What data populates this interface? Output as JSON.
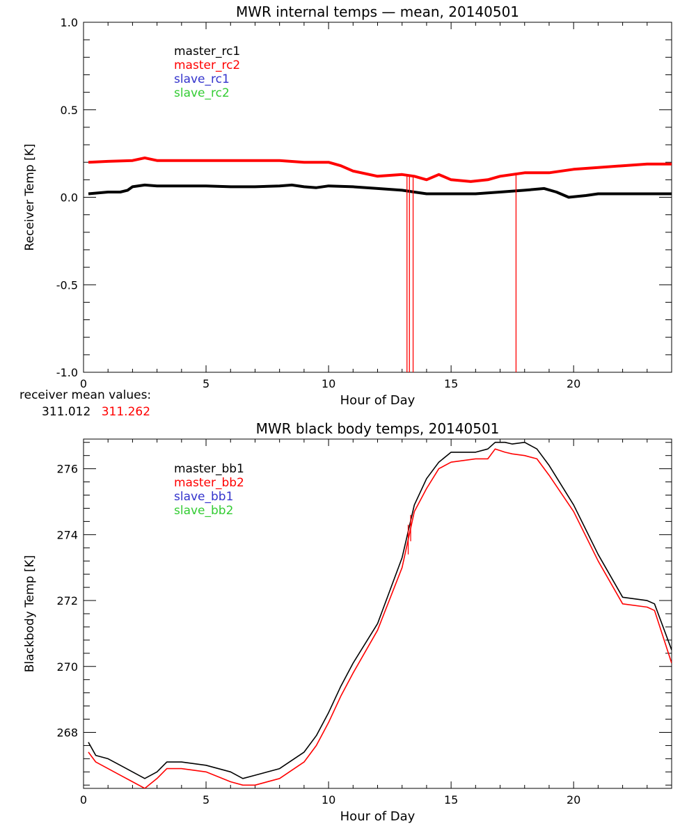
{
  "chart_data": [
    {
      "type": "line",
      "title": "MWR internal temps — mean, 20140501",
      "xlabel": "Hour of Day",
      "ylabel": "Receiver Temp [K]",
      "xlim": [
        0,
        24
      ],
      "ylim": [
        -1.0,
        1.0
      ],
      "xticks": [
        0,
        5,
        10,
        15,
        20
      ],
      "yticks": [
        -1.0,
        -0.5,
        0.0,
        0.5,
        1.0
      ],
      "ytick_labels": [
        "-1.0",
        "-0.5",
        "0.0",
        "0.5",
        "1.0"
      ],
      "grid": false,
      "legend_position": "top-left",
      "legend": [
        {
          "name": "master_rc1",
          "color": "#000000"
        },
        {
          "name": "master_rc2",
          "color": "#ff0000"
        },
        {
          "name": "slave_rc1",
          "color": "#3333cc"
        },
        {
          "name": "slave_rc2",
          "color": "#33cc33"
        }
      ],
      "series": [
        {
          "name": "master_rc1",
          "color": "#000000",
          "x": [
            0.2,
            1,
            1.5,
            1.8,
            2,
            2.5,
            3,
            4,
            5,
            6,
            7,
            8,
            8.5,
            9,
            9.5,
            10,
            11,
            12,
            13,
            13.5,
            14,
            15,
            16,
            17,
            18,
            18.8,
            19.3,
            19.8,
            20.5,
            21,
            22,
            23,
            24
          ],
          "y": [
            0.02,
            0.03,
            0.03,
            0.04,
            0.06,
            0.07,
            0.065,
            0.065,
            0.065,
            0.06,
            0.06,
            0.065,
            0.07,
            0.06,
            0.055,
            0.065,
            0.06,
            0.05,
            0.04,
            0.03,
            0.02,
            0.02,
            0.02,
            0.03,
            0.04,
            0.05,
            0.03,
            0.0,
            0.01,
            0.02,
            0.02,
            0.02,
            0.02
          ]
        },
        {
          "name": "master_rc2",
          "color": "#ff0000",
          "x": [
            0.2,
            1,
            2,
            2.5,
            3,
            4,
            5,
            6,
            7,
            8,
            9,
            10,
            10.5,
            11,
            12,
            13,
            13.5,
            14,
            14.5,
            15,
            15.8,
            16.5,
            17,
            18,
            19,
            20,
            21,
            22,
            23,
            24
          ],
          "y": [
            0.2,
            0.205,
            0.21,
            0.225,
            0.21,
            0.21,
            0.21,
            0.21,
            0.21,
            0.21,
            0.2,
            0.2,
            0.18,
            0.15,
            0.12,
            0.13,
            0.12,
            0.1,
            0.13,
            0.1,
            0.09,
            0.1,
            0.12,
            0.14,
            0.14,
            0.16,
            0.17,
            0.18,
            0.19,
            0.19
          ]
        }
      ],
      "spikes": [
        {
          "series": "master_rc2",
          "x": 13.2,
          "y_from": 0.12,
          "y_to": -1.0
        },
        {
          "series": "master_rc2",
          "x": 13.3,
          "y_from": 0.12,
          "y_to": -1.0
        },
        {
          "series": "master_rc2",
          "x": 13.45,
          "y_from": 0.12,
          "y_to": -1.0
        },
        {
          "series": "master_rc2",
          "x": 17.65,
          "y_from": 0.14,
          "y_to": -1.0
        }
      ]
    },
    {
      "type": "line",
      "title": "MWR black body temps, 20140501",
      "xlabel": "Hour of Day",
      "ylabel": "Blackbody Temp [K]",
      "xlim": [
        0,
        24
      ],
      "ylim": [
        266.3,
        276.9
      ],
      "xticks": [
        0,
        5,
        10,
        15,
        20
      ],
      "yticks": [
        268,
        270,
        272,
        274,
        276
      ],
      "ytick_labels": [
        "268",
        "270",
        "272",
        "274",
        "276"
      ],
      "grid": false,
      "legend_position": "top-left",
      "legend": [
        {
          "name": "master_bb1",
          "color": "#000000"
        },
        {
          "name": "master_bb2",
          "color": "#ff0000"
        },
        {
          "name": "slave_bb1",
          "color": "#3333cc"
        },
        {
          "name": "slave_bb2",
          "color": "#33cc33"
        }
      ],
      "series": [
        {
          "name": "master_bb1",
          "color": "#000000",
          "x": [
            0.2,
            0.5,
            1,
            1.5,
            2,
            2.5,
            3,
            3.4,
            4,
            5,
            6,
            6.5,
            7,
            8,
            9,
            9.5,
            10,
            10.5,
            11,
            12,
            13,
            13.5,
            14,
            14.5,
            15,
            16,
            16.5,
            16.8,
            17.2,
            17.5,
            18,
            18.5,
            19,
            20,
            21,
            22,
            23,
            23.3,
            24
          ],
          "y": [
            267.7,
            267.3,
            267.2,
            267.0,
            266.8,
            266.6,
            266.8,
            267.1,
            267.1,
            267.0,
            266.8,
            266.6,
            266.7,
            266.9,
            267.4,
            267.9,
            268.6,
            269.4,
            270.1,
            271.3,
            273.3,
            274.9,
            275.7,
            276.2,
            276.5,
            276.5,
            276.6,
            276.8,
            276.8,
            276.75,
            276.8,
            276.6,
            276.1,
            274.9,
            273.4,
            272.1,
            272.0,
            271.9,
            270.5
          ]
        },
        {
          "name": "master_bb2",
          "color": "#ff0000",
          "x": [
            0.2,
            0.5,
            1,
            1.5,
            2,
            2.5,
            3,
            3.4,
            4,
            5,
            6,
            6.5,
            7,
            8,
            9,
            9.5,
            10,
            10.5,
            11,
            12,
            13,
            13.5,
            14,
            14.5,
            15,
            16,
            16.5,
            16.8,
            17.2,
            17.5,
            18,
            18.5,
            19,
            20,
            21,
            22,
            23,
            23.3,
            24
          ],
          "y": [
            267.4,
            267.1,
            266.9,
            266.7,
            266.5,
            266.3,
            266.6,
            266.9,
            266.9,
            266.8,
            266.5,
            266.4,
            266.4,
            266.6,
            267.1,
            267.6,
            268.3,
            269.1,
            269.8,
            271.1,
            273.0,
            274.7,
            275.4,
            276.0,
            276.2,
            276.3,
            276.3,
            276.6,
            276.5,
            276.45,
            276.4,
            276.3,
            275.8,
            274.7,
            273.2,
            271.9,
            271.8,
            271.7,
            270.1
          ]
        }
      ],
      "spikes": [
        {
          "series": "master_bb2",
          "x": 13.25,
          "y_from": 274.3,
          "y_to": 273.4
        },
        {
          "series": "master_bb2",
          "x": 13.35,
          "y_from": 274.6,
          "y_to": 273.8
        }
      ]
    }
  ],
  "receiver_mean": {
    "label": "receiver mean values:",
    "values": [
      {
        "text": "311.012",
        "color": "#000000"
      },
      {
        "text": "311.262",
        "color": "#ff0000"
      }
    ]
  }
}
